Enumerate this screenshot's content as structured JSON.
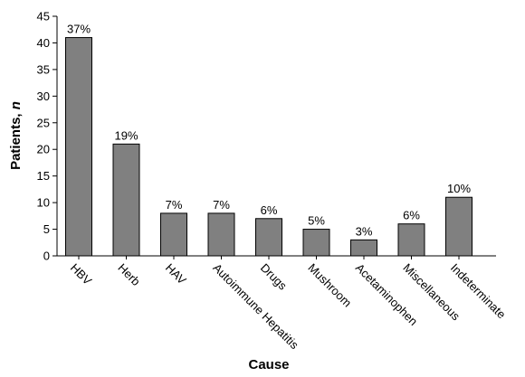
{
  "chart_data": {
    "type": "bar",
    "categories": [
      "HBV",
      "Herb",
      "HAV",
      "Autoimmune Hepatitis",
      "Drugs",
      "Mushroom",
      "Acetaminophen",
      "Miscellaneous",
      "Indeterminate"
    ],
    "values": [
      41,
      21,
      8,
      8,
      7,
      5,
      3,
      6,
      11
    ],
    "data_labels": [
      "37%",
      "19%",
      "7%",
      "7%",
      "6%",
      "5%",
      "3%",
      "6%",
      "10%"
    ],
    "xlabel": "Cause",
    "ylabel_prefix": "Patients, ",
    "ylabel_italic": "n",
    "ylim": [
      0,
      45
    ],
    "yticks": [
      "0",
      "5",
      "10",
      "15",
      "20",
      "25",
      "30",
      "35",
      "40",
      "45"
    ],
    "grid": false,
    "bar_color": "#808080",
    "bar_edge_color": "#000000"
  }
}
